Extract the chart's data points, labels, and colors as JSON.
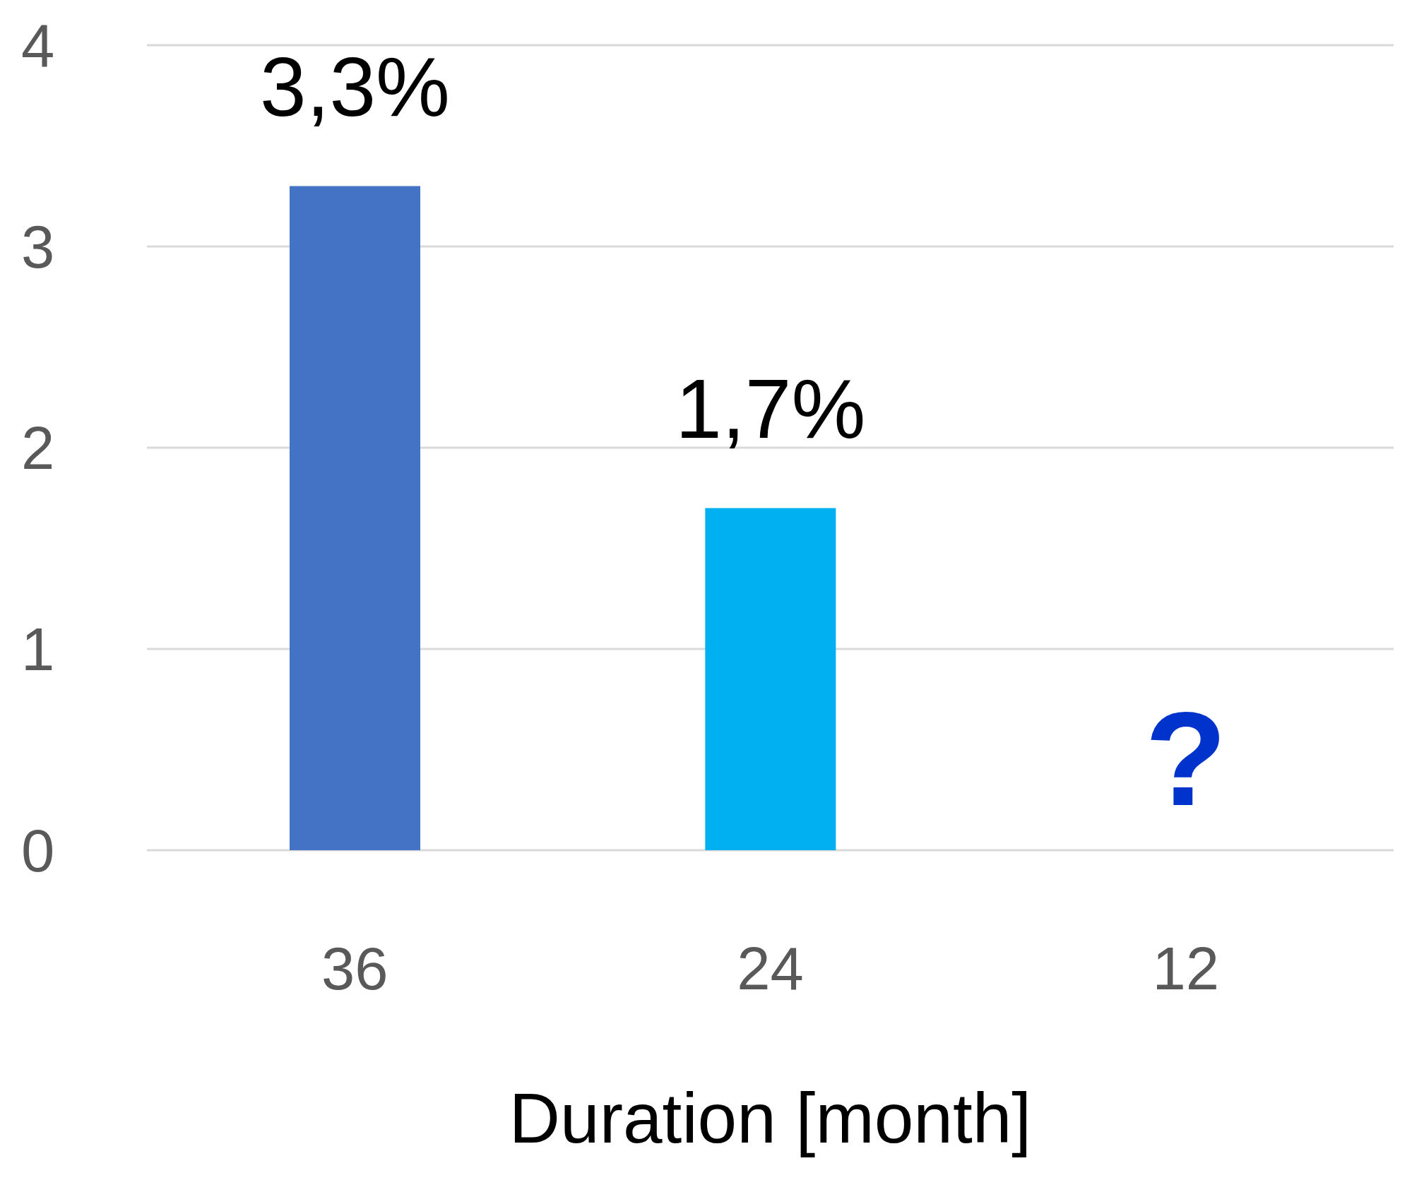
{
  "chart_data": {
    "type": "bar",
    "xlabel": "Duration [month]",
    "categories": [
      "36",
      "24",
      "12"
    ],
    "values": [
      3.3,
      1.7,
      null
    ],
    "colors": [
      "#4472c4",
      "#00b0f0",
      "#4472c4"
    ],
    "value_labels": [
      "3,3%",
      "1,7%",
      null
    ],
    "annotations": [
      "?"
    ],
    "ylim": [
      0,
      4
    ],
    "yticks": [
      0,
      1,
      2,
      3,
      4
    ],
    "grid": "y",
    "legend": false
  }
}
